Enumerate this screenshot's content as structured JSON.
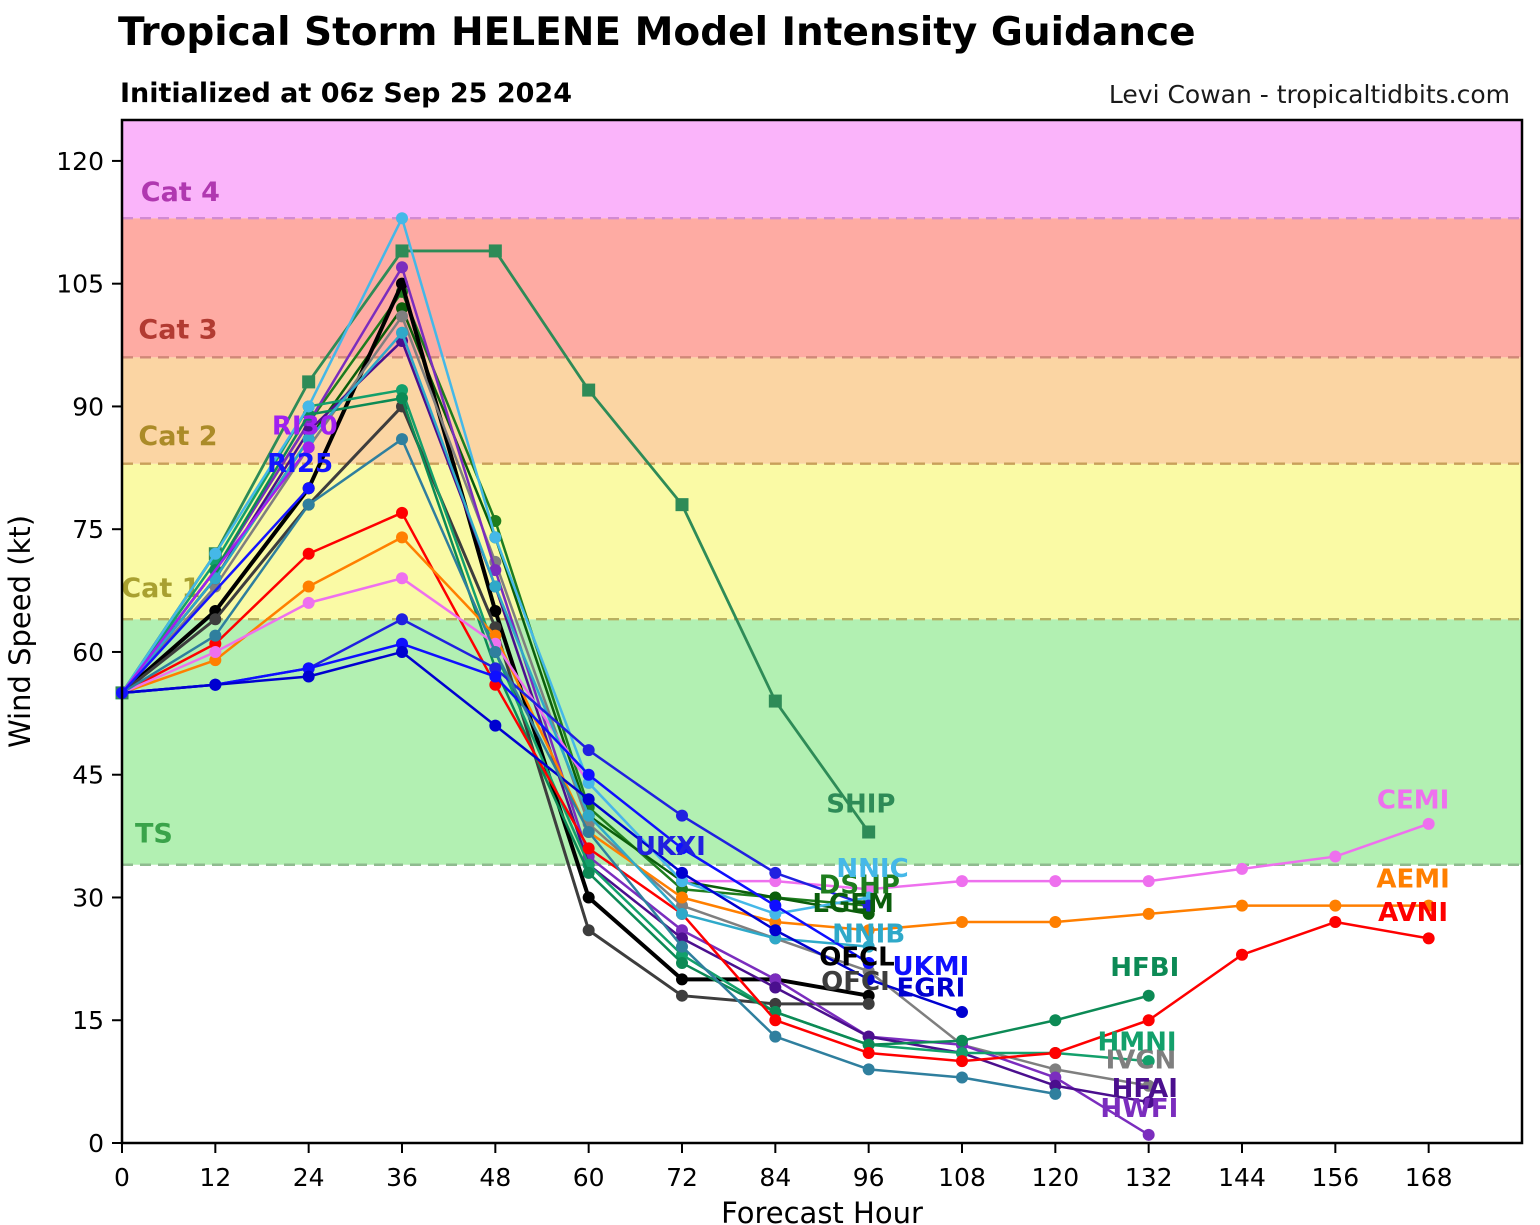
{
  "header": {
    "title": "Tropical Storm HELENE Model Intensity Guidance",
    "subtitle": "Initialized at 06z Sep 25 2024",
    "credit": "Levi Cowan - tropicaltidbits.com"
  },
  "chart_data": {
    "type": "line",
    "title": "Tropical Storm HELENE Model Intensity Guidance",
    "subtitle": "Initialized at 06z Sep 25 2024",
    "xlabel": "Forecast Hour",
    "ylabel": "Wind Speed (kt)",
    "xlim": [
      0,
      180
    ],
    "ylim": [
      0,
      125
    ],
    "x_ticks": [
      0,
      12,
      24,
      36,
      48,
      60,
      72,
      84,
      96,
      108,
      120,
      132,
      144,
      156,
      168
    ],
    "y_ticks": [
      0,
      15,
      30,
      45,
      60,
      75,
      90,
      105,
      120
    ],
    "grid": false,
    "legend_position": "inline-labels",
    "bands": [
      {
        "label": "TS",
        "from": 34,
        "to": 64,
        "fill": "#b2f0b2",
        "label_color": "#3aa34a",
        "label_pos": [
          4.1,
          37.8
        ],
        "boundary_color": "#8fbb8f"
      },
      {
        "label": "Cat 1",
        "from": 64,
        "to": 83,
        "fill": "#fafaa5",
        "label_color": "#a8a030",
        "label_pos": [
          5.0,
          67.8
        ],
        "boundary_color": "#b8b060"
      },
      {
        "label": "Cat 2",
        "from": 83,
        "to": 96,
        "fill": "#fbd5a3",
        "label_color": "#ab8b28",
        "label_pos": [
          7.2,
          86.4
        ],
        "boundary_color": "#c8a05a"
      },
      {
        "label": "Cat 3",
        "from": 96,
        "to": 113,
        "fill": "#feaba3",
        "label_color": "#b23b32",
        "label_pos": [
          7.2,
          99.4
        ],
        "boundary_color": "#d08878"
      },
      {
        "label": "Cat 4",
        "from": 113,
        "to": 125,
        "fill": "#fab4fa",
        "label_color": "#b038b0",
        "label_pos": [
          7.5,
          116.2
        ],
        "boundary_color": "#d28ad2"
      }
    ],
    "hours": [
      0,
      12,
      24,
      36,
      48,
      60,
      72,
      84,
      96,
      108,
      120,
      132,
      144,
      156,
      168
    ],
    "series": [
      {
        "name": "SHIP",
        "color": "#2e8b57",
        "width": 2.8,
        "marker": "square",
        "values": [
          55,
          72,
          93,
          109,
          109,
          92,
          78,
          54,
          38
        ],
        "label_pos": [
          95,
          41.5
        ]
      },
      {
        "name": "DSHP",
        "color": "#1e7d1e",
        "width": 2.5,
        "marker": "circle",
        "values": [
          55,
          70,
          88,
          104,
          76,
          41,
          31,
          30,
          29
        ],
        "label_pos": [
          94.8,
          31.6
        ]
      },
      {
        "name": "LGEM",
        "color": "#0b5e0b",
        "width": 2.5,
        "marker": "circle",
        "values": [
          55,
          69,
          86,
          102,
          74,
          40,
          32,
          30,
          28
        ],
        "label_pos": [
          94,
          29.3
        ]
      },
      {
        "name": "OFCL",
        "color": "#000000",
        "width": 4,
        "marker": "circle",
        "values": [
          55,
          65,
          80,
          105,
          65,
          30,
          20,
          20,
          18
        ],
        "label_pos": [
          94.5,
          22.8
        ]
      },
      {
        "name": "OFCI",
        "color": "#3d3d3d",
        "width": 3,
        "marker": "circle",
        "values": [
          55,
          64,
          78,
          90,
          63,
          26,
          18,
          17,
          17
        ],
        "label_pos": [
          94.3,
          19.8
        ]
      },
      {
        "name": "IVCN",
        "color": "#7f7f7f",
        "width": 2.5,
        "marker": "circle",
        "values": [
          55,
          68,
          85,
          101,
          71,
          39,
          29,
          25,
          21,
          12,
          9,
          7
        ],
        "label_pos": [
          131,
          10.2
        ]
      },
      {
        "name": "HWFI",
        "color": "#7b2dbe",
        "width": 2.5,
        "marker": "circle",
        "values": [
          55,
          70,
          88,
          107,
          70,
          35,
          26,
          20,
          13,
          12,
          8,
          1
        ],
        "label_pos": [
          130.8,
          4.3
        ]
      },
      {
        "name": "HFAI",
        "color": "#4b0f8e",
        "width": 2.5,
        "marker": "circle",
        "values": [
          55,
          69,
          87,
          98,
          68,
          34,
          25,
          19,
          13,
          11,
          7,
          5
        ],
        "label_pos": [
          131.5,
          6.7
        ]
      },
      {
        "name": "HMNI",
        "color": "#13a06b",
        "width": 2.5,
        "marker": "circle",
        "values": [
          55,
          71,
          90,
          92,
          60,
          34,
          23,
          16,
          12,
          11,
          11,
          10
        ],
        "label_pos": [
          130.5,
          12.4
        ]
      },
      {
        "name": "HFBI",
        "color": "#0c8a55",
        "width": 2.5,
        "marker": "circle",
        "values": [
          55,
          70,
          89,
          91,
          58,
          33,
          22,
          16,
          12,
          12.5,
          15,
          18
        ],
        "label_pos": [
          131.5,
          21.5
        ]
      },
      {
        "name": "AVNI",
        "color": "#fe0000",
        "width": 2.5,
        "marker": "circle",
        "values": [
          55,
          61,
          72,
          77,
          56,
          36,
          28,
          15,
          11,
          10,
          11,
          15,
          23,
          27,
          25
        ],
        "label_pos": [
          166,
          28.2
        ]
      },
      {
        "name": "AEMI",
        "color": "#ff7f00",
        "width": 2.5,
        "marker": "circle",
        "values": [
          55,
          59,
          68,
          74,
          62,
          38,
          30,
          27,
          26,
          27,
          27,
          28,
          29,
          29,
          29
        ],
        "label_pos": [
          166,
          32.3
        ]
      },
      {
        "name": "CEMI",
        "color": "#ee70ee",
        "width": 2.5,
        "marker": "circle",
        "values": [
          55,
          60,
          66,
          69,
          61,
          44,
          32,
          32,
          31,
          32,
          32,
          32,
          33.5,
          35,
          39
        ],
        "label_pos": [
          166,
          42
        ]
      },
      {
        "name": "NNIC",
        "color": "#45b8e8",
        "width": 2.5,
        "marker": "circle",
        "values": [
          55,
          72,
          90,
          113,
          74,
          44,
          32,
          28,
          30
        ],
        "label_pos": [
          96.5,
          33.6
        ]
      },
      {
        "name": "NNIB",
        "color": "#2fa9c9",
        "width": 2.5,
        "marker": "circle",
        "values": [
          55,
          69,
          86,
          99,
          68,
          40,
          28,
          25,
          24
        ],
        "label_pos": [
          96,
          25.6
        ]
      },
      {
        "name": "UKXI",
        "color": "#2020e0",
        "width": 2.5,
        "marker": "circle",
        "values": [
          55,
          56,
          58,
          64,
          58,
          48,
          40,
          33,
          29
        ],
        "label_pos": [
          70.5,
          36.3
        ]
      },
      {
        "name": "UKMI",
        "color": "#0f0fff",
        "width": 2.5,
        "marker": "circle",
        "values": [
          55,
          56,
          58,
          61,
          57,
          45,
          36,
          29,
          22
        ],
        "label_pos": [
          104,
          21.6
        ]
      },
      {
        "name": "EGRI",
        "color": "#0000d0",
        "width": 2.5,
        "marker": "circle",
        "values": [
          55,
          56,
          57,
          60,
          51,
          42,
          33,
          26,
          20,
          16
        ],
        "label_pos": [
          104,
          19
        ]
      },
      {
        "name": "",
        "color": "#2f7f9e",
        "width": 2.5,
        "marker": "circle",
        "values": [
          55,
          62,
          78,
          86,
          60,
          38,
          24,
          13,
          9,
          8,
          6
        ],
        "label_pos": null
      },
      {
        "name": "RI30",
        "color": "#a020f0",
        "width": 2.5,
        "marker": "circle",
        "hours": [
          0,
          24
        ],
        "values": [
          55,
          85
        ],
        "label_pos": [
          23.5,
          87.7
        ]
      },
      {
        "name": "RI25",
        "color": "#1414ff",
        "width": 2.5,
        "marker": "circle",
        "hours": [
          0,
          24
        ],
        "values": [
          55,
          80
        ],
        "label_pos": [
          22.9,
          83.1
        ]
      }
    ]
  }
}
